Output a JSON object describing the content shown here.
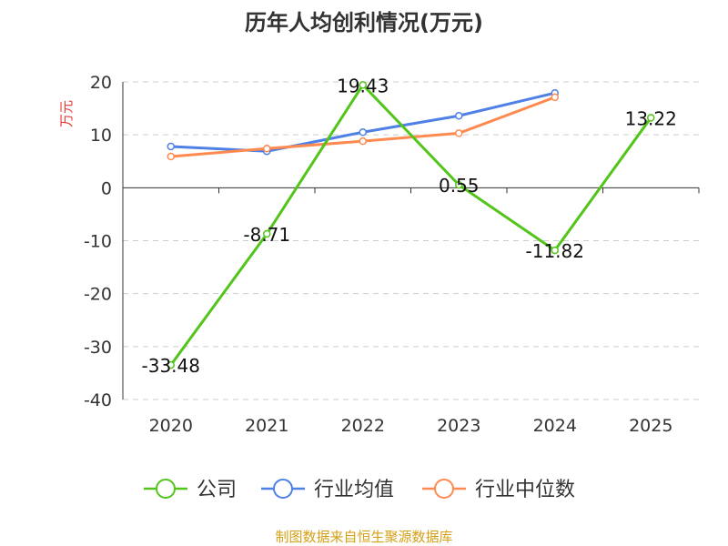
{
  "chart_data": {
    "type": "line",
    "title": "历年人均创利情况(万元)",
    "ylabel": "万元",
    "xlabel": "",
    "categories": [
      "2020",
      "2021",
      "2022",
      "2023",
      "2024",
      "2025"
    ],
    "ylim": [
      -40,
      20
    ],
    "yticks": [
      20,
      10,
      0,
      -10,
      -20,
      -30,
      -40
    ],
    "grid": true,
    "legend_position": "bottom",
    "series": [
      {
        "name": "公司",
        "color": "#52c41a",
        "values": [
          -33.48,
          -8.71,
          19.43,
          0.55,
          -11.82,
          13.22
        ],
        "labels": [
          "-33.48",
          "-8.71",
          "19.43",
          "0.55",
          "-11.82",
          "13.22"
        ]
      },
      {
        "name": "行业均值",
        "color": "#4e80e6",
        "values": [
          7.8,
          6.9,
          10.5,
          13.6,
          17.9,
          null
        ]
      },
      {
        "name": "行业中位数",
        "color": "#ff8a50",
        "values": [
          5.9,
          7.4,
          8.8,
          10.3,
          17.1,
          null
        ]
      }
    ],
    "source": "制图数据来自恒生聚源数据库"
  }
}
